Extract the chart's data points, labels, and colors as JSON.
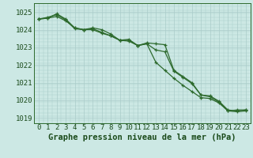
{
  "line1": [
    1024.6,
    1024.7,
    1024.85,
    1024.55,
    1024.05,
    1024.0,
    1024.0,
    1023.8,
    1023.65,
    1023.4,
    1023.35,
    1023.1,
    1023.2,
    1022.15,
    1021.7,
    1021.25,
    1020.85,
    1020.5,
    1020.15,
    1020.1,
    1019.85,
    1019.4,
    1019.35,
    1019.4
  ],
  "line2": [
    1024.6,
    1024.65,
    1024.9,
    1024.6,
    1024.1,
    1024.0,
    1024.1,
    1024.0,
    1023.75,
    1023.4,
    1023.45,
    1023.1,
    1023.25,
    1023.2,
    1023.15,
    1021.7,
    1021.35,
    1021.0,
    1020.3,
    1020.2,
    1019.9,
    1019.4,
    1019.45,
    1019.45
  ],
  "line3": [
    1024.6,
    1024.65,
    1024.75,
    1024.5,
    1024.1,
    1024.0,
    1024.05,
    1023.85,
    1023.65,
    1023.4,
    1023.4,
    1023.1,
    1023.2,
    1022.85,
    1022.75,
    1021.65,
    1021.3,
    1020.95,
    1020.3,
    1020.25,
    1019.95,
    1019.45,
    1019.4,
    1019.45
  ],
  "x": [
    0,
    1,
    2,
    3,
    4,
    5,
    6,
    7,
    8,
    9,
    10,
    11,
    12,
    13,
    14,
    15,
    16,
    17,
    18,
    19,
    20,
    21,
    22,
    23
  ],
  "ylim": [
    1018.7,
    1025.5
  ],
  "yticks": [
    1019,
    1020,
    1021,
    1022,
    1023,
    1024,
    1025
  ],
  "xticks": [
    0,
    1,
    2,
    3,
    4,
    5,
    6,
    7,
    8,
    9,
    10,
    11,
    12,
    13,
    14,
    15,
    16,
    17,
    18,
    19,
    20,
    21,
    22,
    23
  ],
  "line_color": "#2d6a2d",
  "bg_color": "#cce8e4",
  "grid_color": "#aaccca",
  "xlabel": "Graphe pression niveau de la mer (hPa)",
  "xlabel_color": "#1a4a1a",
  "tick_color": "#1a4a1a",
  "marker": "+",
  "markersize": 3.5,
  "linewidth": 0.9,
  "xlabel_fontsize": 7.5,
  "tick_fontsize": 6.5
}
